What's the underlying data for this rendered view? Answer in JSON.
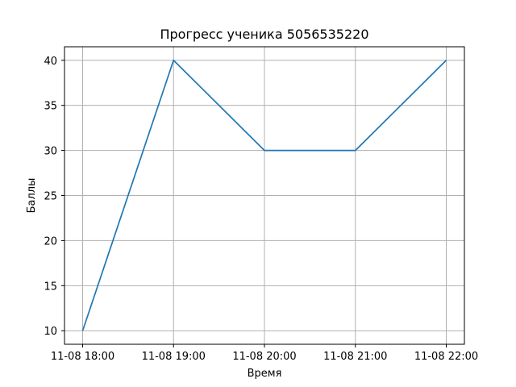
{
  "chart_data": {
    "type": "line",
    "title": "Прогресс ученика 5056535220",
    "xlabel": "Время",
    "ylabel": "Баллы",
    "x": [
      "11-08 18:00",
      "11-08 19:00",
      "11-08 20:00",
      "11-08 21:00",
      "11-08 22:00"
    ],
    "series": [
      {
        "values": [
          10,
          40,
          30,
          30,
          40
        ],
        "color": "#1f77b4"
      }
    ],
    "x_ticks": [
      "11-08 18:00",
      "11-08 19:00",
      "11-08 20:00",
      "11-08 21:00",
      "11-08 22:00"
    ],
    "y_ticks": [
      10,
      15,
      20,
      25,
      30,
      35,
      40
    ],
    "ylim": [
      8.5,
      41.5
    ],
    "grid": true,
    "colors": {
      "grid": "#b0b0b0",
      "axis": "#000000"
    }
  }
}
